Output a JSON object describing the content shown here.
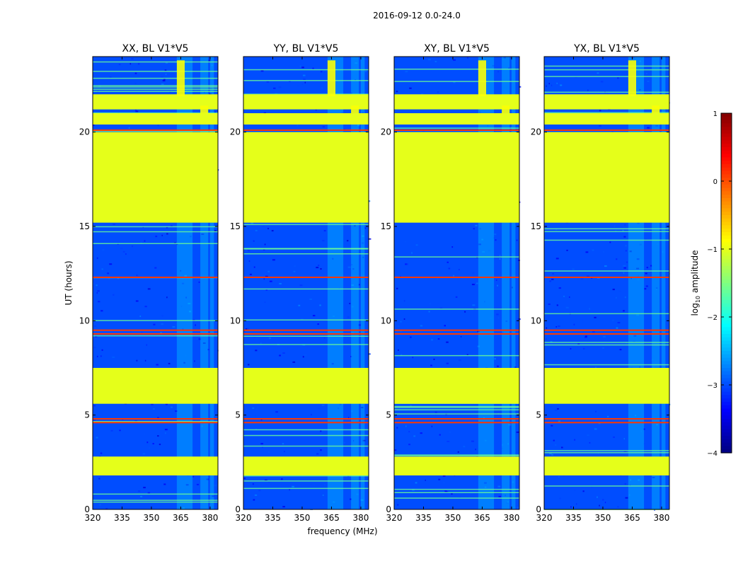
{
  "figure_title": "2016-09-12 0.0-24.0",
  "chart_data": {
    "type": "heatmap",
    "description_note": "Dynamic spectra (waterfall plots) of log10 amplitude vs frequency and UT for four polarization products on baseline V1*V5.",
    "xlabel": "frequency (MHz)",
    "ylabel": "UT (hours)",
    "xlim": [
      320,
      384
    ],
    "ylim": [
      0,
      24
    ],
    "xticks": [
      320,
      335,
      350,
      365,
      380
    ],
    "yticks": [
      0,
      5,
      10,
      15,
      20
    ],
    "panels": [
      {
        "title": "XX, BL V1*V5"
      },
      {
        "title": "YY, BL V1*V5"
      },
      {
        "title": "XY, BL V1*V5"
      },
      {
        "title": "YX, BL V1*V5"
      }
    ],
    "background_log10_amplitude": -3,
    "flagged_blocks_log10_amplitude": -1,
    "flagged_blocks_ut": [
      [
        15.2,
        20.0
      ],
      [
        5.6,
        7.5
      ],
      [
        1.8,
        2.8
      ],
      [
        20.4,
        21.0
      ],
      [
        21.2,
        22.0
      ]
    ],
    "bright_lines_ut": [
      20.1,
      12.3,
      9.5,
      9.3,
      4.8,
      4.6
    ],
    "rfi_channels_mhz": [
      [
        363,
        367
      ],
      [
        367,
        371
      ],
      [
        375,
        379
      ],
      [
        380,
        382
      ]
    ],
    "colorbar": {
      "label_main": "log",
      "label_sub": "10",
      "label_rest": " amplitude",
      "vmin": -4,
      "vmax": 1,
      "ticks": [
        1,
        0,
        -1,
        -2,
        -3,
        -4
      ],
      "tick_labels": [
        "1",
        "0",
        "−1",
        "−2",
        "−3",
        "−4"
      ],
      "colormap": "jet"
    }
  }
}
